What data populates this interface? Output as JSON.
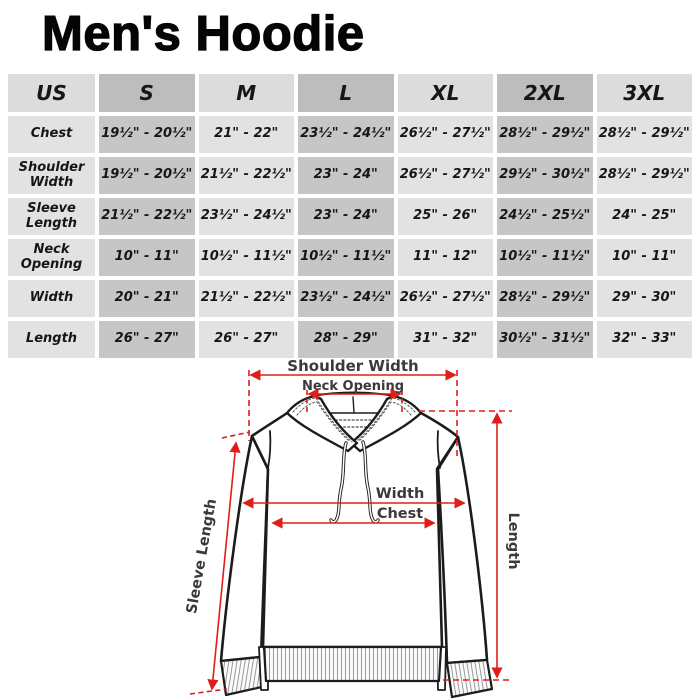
{
  "title": "Men's Hoodie",
  "table": {
    "header": [
      "US",
      "S",
      "M",
      "L",
      "XL",
      "2XL",
      "3XL"
    ],
    "rows": [
      {
        "label": "Chest",
        "values": [
          "19½\" - 20½\"",
          "21\" - 22\"",
          "23½\" - 24½\"",
          "26½\" - 27½\"",
          "28½\" - 29½\"",
          "28½\" - 29½\""
        ]
      },
      {
        "label": "Shoulder Width",
        "values": [
          "19½\" - 20½\"",
          "21½\" - 22½\"",
          "23\" - 24\"",
          "26½\" - 27½\"",
          "29½\" - 30½\"",
          "28½\" - 29½\""
        ]
      },
      {
        "label": "Sleeve Length",
        "values": [
          "21½\" - 22½\"",
          "23½\" - 24½\"",
          "23\" - 24\"",
          "25\" - 26\"",
          "24½\" - 25½\"",
          "24\" - 25\""
        ]
      },
      {
        "label": "Neck Opening",
        "values": [
          "10\" - 11\"",
          "10½\" - 11½\"",
          "10½\" - 11½\"",
          "11\" - 12\"",
          "10½\" - 11½\"",
          "10\" - 11\""
        ]
      },
      {
        "label": "Width",
        "values": [
          "20\" - 21\"",
          "21½\" - 22½\"",
          "23½\" - 24½\"",
          "26½\" - 27½\"",
          "28½\" - 29½\"",
          "29\" - 30\""
        ]
      },
      {
        "label": "Length",
        "values": [
          "26\" - 27\"",
          "26\" - 27\"",
          "28\" - 29\"",
          "31\" - 32\"",
          "30½\" - 31½\"",
          "32\" - 33\""
        ]
      }
    ]
  },
  "diagram": {
    "shoulder_width": "Shoulder Width",
    "neck_opening": "Neck Opening",
    "width": "Width",
    "chest": "Chest",
    "length": "Length",
    "sleeve_length": "Sleeve Length"
  },
  "colors": {
    "measure_red": "#e01e19",
    "cell_light": "#e2e2e2",
    "cell_dark": "#c6c6c6",
    "header_light": "#dcdcdc",
    "header_dark": "#bdbdbd",
    "label_gray": "#3a3a3a"
  }
}
